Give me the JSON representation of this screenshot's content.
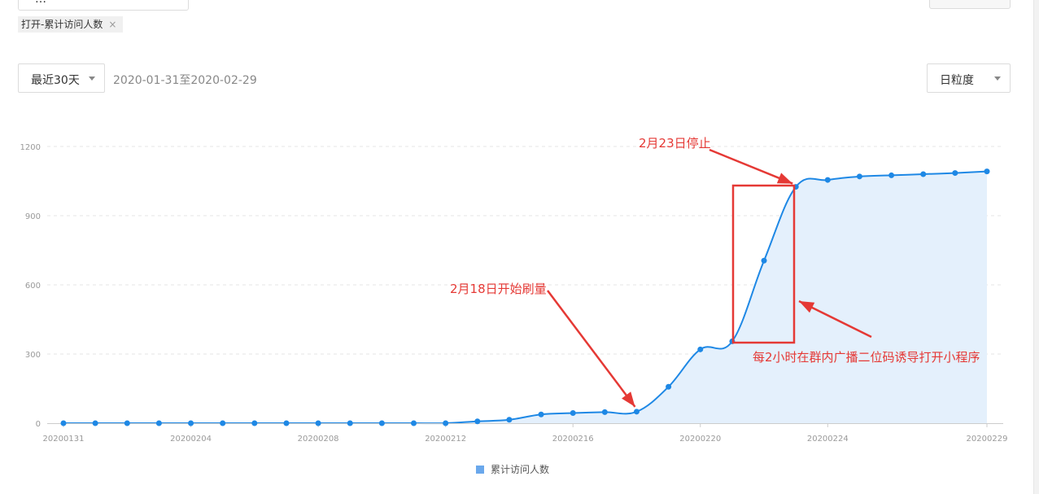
{
  "top_bar": {
    "select_value": "…"
  },
  "filter_tag": {
    "label": "打开-累计访问人数",
    "close": "×"
  },
  "toolbar": {
    "range_select": "最近30天",
    "date_range": "2020-01-31至2020-02-29",
    "granularity_select": "日粒度"
  },
  "legend": {
    "label": "累计访问人数"
  },
  "colors": {
    "line": "#1e88e5",
    "area": "#e4f0fc",
    "annotation": "#e53935",
    "legend_swatch": "#6aa8ec"
  },
  "annotations": {
    "start": "2月18日开始刷量",
    "stop": "2月23日停止",
    "note": "每2小时在群内广播二位码诱导打开小程序"
  },
  "chart_data": {
    "type": "area",
    "x": [
      "20200131",
      "20200201",
      "20200202",
      "20200203",
      "20200204",
      "20200205",
      "20200206",
      "20200207",
      "20200208",
      "20200209",
      "20200210",
      "20200211",
      "20200212",
      "20200213",
      "20200214",
      "20200215",
      "20200216",
      "20200217",
      "20200218",
      "20200219",
      "20200220",
      "20200221",
      "20200222",
      "20200223",
      "20200224",
      "20200225",
      "20200226",
      "20200227",
      "20200228",
      "20200229"
    ],
    "series": [
      {
        "name": "累计访问人数",
        "values": [
          0,
          0,
          0,
          0,
          0,
          0,
          0,
          0,
          0,
          0,
          0,
          0,
          0,
          8,
          15,
          38,
          44,
          48,
          50,
          158,
          320,
          355,
          705,
          1025,
          1055,
          1070,
          1075,
          1080,
          1085,
          1092
        ]
      }
    ],
    "x_tick_labels": [
      "20200131",
      "20200204",
      "20200208",
      "20200212",
      "20200216",
      "20200220",
      "20200224",
      "20200229"
    ],
    "y_ticks": [
      0,
      300,
      600,
      900,
      1200
    ],
    "ylim": [
      0,
      1200
    ],
    "grid": true,
    "legend_position": "bottom"
  }
}
